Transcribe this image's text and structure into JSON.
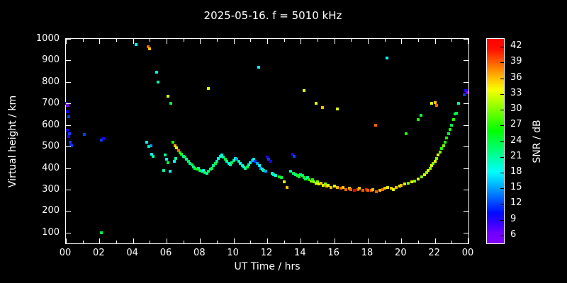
{
  "title": "2025-05-16. f = 5010 kHz",
  "colors": {
    "background": "#000000",
    "axis": "#ffffff",
    "text": "#ffffff",
    "snr_low": "#8000ff",
    "snr_high": "#ff0000"
  },
  "chart_data": {
    "type": "scatter",
    "title": "2025-05-16. f = 5010 kHz",
    "xlabel": "UT Time / hrs",
    "ylabel": "Virtual height / km",
    "xlim": [
      0,
      24
    ],
    "ylim": [
      50,
      1000
    ],
    "grid": false,
    "x_ticks": [
      {
        "value": 0,
        "label": "00"
      },
      {
        "value": 2,
        "label": "02"
      },
      {
        "value": 4,
        "label": "04"
      },
      {
        "value": 6,
        "label": "06"
      },
      {
        "value": 8,
        "label": "08"
      },
      {
        "value": 10,
        "label": "10"
      },
      {
        "value": 12,
        "label": "12"
      },
      {
        "value": 14,
        "label": "14"
      },
      {
        "value": 16,
        "label": "16"
      },
      {
        "value": 18,
        "label": "18"
      },
      {
        "value": 20,
        "label": "20"
      },
      {
        "value": 22,
        "label": "22"
      },
      {
        "value": 24,
        "label": "00"
      }
    ],
    "y_ticks": [
      100,
      200,
      300,
      400,
      500,
      600,
      700,
      800,
      900,
      1000
    ],
    "colorbar": {
      "label": "SNR / dB",
      "ticks": [
        42,
        39,
        36,
        33,
        30,
        27,
        24,
        21,
        18,
        15,
        12,
        9,
        6
      ],
      "range": [
        4.5,
        43.5
      ],
      "position": "right"
    },
    "series_note": "points are [UT_hours, virtual_height_km, SNR_dB]",
    "points": [
      [
        0.05,
        700,
        9
      ],
      [
        0.1,
        690,
        6
      ],
      [
        0.08,
        660,
        9
      ],
      [
        0.15,
        640,
        12
      ],
      [
        0.1,
        575,
        9
      ],
      [
        0.2,
        560,
        12
      ],
      [
        0.18,
        545,
        9
      ],
      [
        0.25,
        520,
        12
      ],
      [
        0.3,
        510,
        9
      ],
      [
        0.35,
        505,
        12
      ],
      [
        1.1,
        555,
        12
      ],
      [
        2.1,
        530,
        12
      ],
      [
        2.25,
        535,
        9
      ],
      [
        2.1,
        100,
        24
      ],
      [
        4.2,
        975,
        18
      ],
      [
        4.9,
        965,
        39
      ],
      [
        5.0,
        955,
        36
      ],
      [
        4.8,
        520,
        18
      ],
      [
        4.95,
        500,
        21
      ],
      [
        5.05,
        505,
        15
      ],
      [
        5.1,
        465,
        18
      ],
      [
        5.2,
        455,
        21
      ],
      [
        5.4,
        845,
        18
      ],
      [
        5.5,
        800,
        21
      ],
      [
        6.1,
        735,
        33
      ],
      [
        6.25,
        700,
        24
      ],
      [
        5.9,
        460,
        21
      ],
      [
        6.0,
        440,
        18
      ],
      [
        6.1,
        425,
        24
      ],
      [
        6.2,
        385,
        18
      ],
      [
        5.85,
        390,
        21
      ],
      [
        6.4,
        520,
        27
      ],
      [
        6.5,
        505,
        36
      ],
      [
        6.6,
        495,
        33
      ],
      [
        6.7,
        480,
        39
      ],
      [
        6.55,
        445,
        21
      ],
      [
        6.45,
        430,
        18
      ],
      [
        6.8,
        470,
        24
      ],
      [
        6.9,
        465,
        27
      ],
      [
        7.0,
        455,
        21
      ],
      [
        7.1,
        450,
        24
      ],
      [
        7.2,
        440,
        21
      ],
      [
        7.3,
        430,
        24
      ],
      [
        7.4,
        420,
        21
      ],
      [
        7.5,
        415,
        24
      ],
      [
        7.6,
        405,
        21
      ],
      [
        7.7,
        400,
        24
      ],
      [
        7.8,
        395,
        27
      ],
      [
        7.9,
        400,
        21
      ],
      [
        8.0,
        390,
        24
      ],
      [
        8.1,
        385,
        21
      ],
      [
        8.2,
        390,
        18
      ],
      [
        8.3,
        380,
        24
      ],
      [
        8.5,
        770,
        33
      ],
      [
        8.4,
        375,
        21
      ],
      [
        8.5,
        385,
        24
      ],
      [
        8.6,
        395,
        21
      ],
      [
        8.7,
        400,
        24
      ],
      [
        8.8,
        410,
        21
      ],
      [
        8.9,
        420,
        24
      ],
      [
        9.0,
        430,
        21
      ],
      [
        9.1,
        445,
        18
      ],
      [
        9.2,
        455,
        21
      ],
      [
        9.3,
        460,
        18
      ],
      [
        9.4,
        450,
        21
      ],
      [
        9.5,
        440,
        24
      ],
      [
        9.6,
        430,
        21
      ],
      [
        9.7,
        420,
        18
      ],
      [
        9.8,
        415,
        21
      ],
      [
        9.9,
        425,
        24
      ],
      [
        10.0,
        435,
        21
      ],
      [
        10.1,
        445,
        18
      ],
      [
        10.2,
        440,
        15
      ],
      [
        10.3,
        430,
        21
      ],
      [
        10.4,
        420,
        18
      ],
      [
        10.5,
        410,
        21
      ],
      [
        10.6,
        405,
        18
      ],
      [
        10.7,
        400,
        21
      ],
      [
        10.8,
        405,
        24
      ],
      [
        10.9,
        415,
        21
      ],
      [
        11.0,
        425,
        18
      ],
      [
        11.1,
        435,
        15
      ],
      [
        11.2,
        440,
        18
      ],
      [
        11.5,
        870,
        18
      ],
      [
        11.3,
        430,
        12
      ],
      [
        11.4,
        420,
        15
      ],
      [
        11.55,
        410,
        18
      ],
      [
        11.6,
        400,
        15
      ],
      [
        11.7,
        395,
        18
      ],
      [
        11.8,
        390,
        21
      ],
      [
        11.9,
        385,
        15
      ],
      [
        12.0,
        450,
        9
      ],
      [
        12.1,
        440,
        12
      ],
      [
        12.2,
        430,
        9
      ],
      [
        12.3,
        375,
        18
      ],
      [
        12.4,
        370,
        21
      ],
      [
        12.5,
        365,
        18
      ],
      [
        12.7,
        360,
        27
      ],
      [
        12.85,
        355,
        24
      ],
      [
        13.0,
        335,
        33
      ],
      [
        13.2,
        310,
        36
      ],
      [
        13.5,
        465,
        9
      ],
      [
        13.6,
        455,
        12
      ],
      [
        13.4,
        385,
        21
      ],
      [
        13.55,
        375,
        24
      ],
      [
        13.7,
        370,
        21
      ],
      [
        13.8,
        365,
        27
      ],
      [
        13.9,
        360,
        24
      ],
      [
        14.0,
        370,
        21
      ],
      [
        14.1,
        365,
        24
      ],
      [
        14.2,
        355,
        27
      ],
      [
        14.3,
        350,
        24
      ],
      [
        14.4,
        355,
        21
      ],
      [
        14.5,
        345,
        27
      ],
      [
        14.2,
        760,
        33
      ],
      [
        14.9,
        700,
        33
      ],
      [
        15.3,
        680,
        36
      ],
      [
        14.6,
        340,
        30
      ],
      [
        14.7,
        345,
        27
      ],
      [
        14.8,
        335,
        30
      ],
      [
        14.9,
        330,
        33
      ],
      [
        15.0,
        335,
        30
      ],
      [
        15.1,
        325,
        33
      ],
      [
        15.2,
        330,
        36
      ],
      [
        15.35,
        320,
        33
      ],
      [
        15.45,
        325,
        30
      ],
      [
        15.55,
        315,
        36
      ],
      [
        15.65,
        320,
        33
      ],
      [
        15.8,
        310,
        36
      ],
      [
        16.0,
        315,
        33
      ],
      [
        16.2,
        675,
        33
      ],
      [
        16.2,
        310,
        36
      ],
      [
        16.4,
        305,
        39
      ],
      [
        16.5,
        310,
        36
      ],
      [
        16.7,
        300,
        39
      ],
      [
        16.9,
        305,
        36
      ],
      [
        17.0,
        300,
        39
      ],
      [
        17.2,
        298,
        42
      ],
      [
        17.4,
        300,
        39
      ],
      [
        17.5,
        305,
        36
      ],
      [
        17.7,
        295,
        39
      ],
      [
        17.9,
        300,
        42
      ],
      [
        18.0,
        298,
        39
      ],
      [
        18.45,
        600,
        39
      ],
      [
        18.2,
        295,
        39
      ],
      [
        18.3,
        300,
        36
      ],
      [
        18.5,
        290,
        39
      ],
      [
        18.7,
        295,
        36
      ],
      [
        18.9,
        300,
        39
      ],
      [
        19.0,
        305,
        36
      ],
      [
        19.2,
        310,
        33
      ],
      [
        19.4,
        305,
        36
      ],
      [
        19.5,
        300,
        33
      ],
      [
        19.7,
        310,
        36
      ],
      [
        19.9,
        315,
        33
      ],
      [
        20.0,
        320,
        36
      ],
      [
        19.15,
        910,
        18
      ],
      [
        20.3,
        560,
        27
      ],
      [
        20.2,
        325,
        33
      ],
      [
        20.4,
        330,
        30
      ],
      [
        20.6,
        335,
        33
      ],
      [
        20.8,
        340,
        30
      ],
      [
        21.0,
        350,
        33
      ],
      [
        21.2,
        360,
        30
      ],
      [
        21.4,
        370,
        33
      ],
      [
        21.5,
        380,
        30
      ],
      [
        21.0,
        625,
        27
      ],
      [
        21.15,
        645,
        24
      ],
      [
        21.8,
        700,
        33
      ],
      [
        22.0,
        705,
        36
      ],
      [
        22.1,
        690,
        39
      ],
      [
        21.6,
        390,
        33
      ],
      [
        21.7,
        400,
        30
      ],
      [
        21.8,
        410,
        33
      ],
      [
        21.9,
        420,
        30
      ],
      [
        22.0,
        430,
        33
      ],
      [
        22.1,
        445,
        30
      ],
      [
        22.2,
        460,
        33
      ],
      [
        22.3,
        475,
        30
      ],
      [
        22.4,
        490,
        27
      ],
      [
        22.5,
        505,
        30
      ],
      [
        22.6,
        520,
        27
      ],
      [
        22.7,
        540,
        27
      ],
      [
        22.8,
        560,
        24
      ],
      [
        22.9,
        580,
        27
      ],
      [
        23.0,
        600,
        24
      ],
      [
        23.1,
        625,
        27
      ],
      [
        23.2,
        650,
        24
      ],
      [
        23.3,
        655,
        24
      ],
      [
        23.4,
        700,
        21
      ],
      [
        23.85,
        760,
        9
      ],
      [
        23.9,
        750,
        6
      ],
      [
        23.75,
        740,
        12
      ]
    ]
  }
}
